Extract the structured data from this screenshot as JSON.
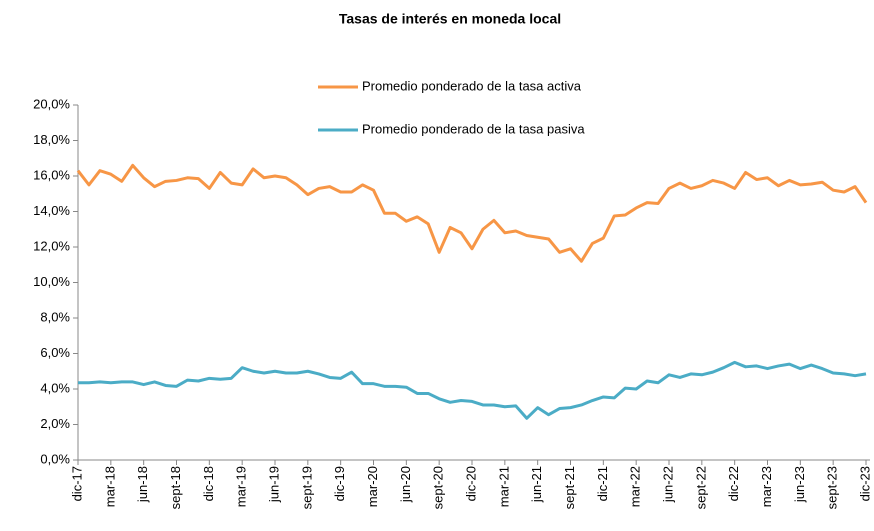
{
  "chart_data": {
    "type": "line",
    "title": "Tasas de interés en moneda local",
    "categories": [
      "dic-17",
      null,
      null,
      "mar-18",
      null,
      null,
      "jun-18",
      null,
      null,
      "sept-18",
      null,
      null,
      "dic-18",
      null,
      null,
      "mar-19",
      null,
      null,
      "jun-19",
      null,
      null,
      "sept-19",
      null,
      null,
      "dic-19",
      null,
      null,
      "mar-20",
      null,
      null,
      "jun-20",
      null,
      null,
      "sept-20",
      null,
      null,
      "dic-20",
      null,
      null,
      "mar-21",
      null,
      null,
      "jun-21",
      null,
      null,
      "sept-21",
      null,
      null,
      "dic-21",
      null,
      null,
      "mar-22",
      null,
      null,
      "jun-22",
      null,
      null,
      "sept-22",
      null,
      null,
      "dic-22",
      null,
      null,
      "mar-23",
      null,
      null,
      "jun-23",
      null,
      null,
      "sept-23",
      null,
      null,
      "dic-23"
    ],
    "series": [
      {
        "name": "Promedio ponderado de la tasa activa",
        "color": "#f79646",
        "values": [
          16.3,
          15.5,
          16.3,
          16.1,
          15.7,
          16.6,
          15.9,
          15.4,
          15.7,
          15.75,
          15.9,
          15.85,
          15.3,
          16.2,
          15.6,
          15.5,
          16.4,
          15.9,
          16.0,
          15.9,
          15.5,
          14.95,
          15.3,
          15.4,
          15.1,
          15.1,
          15.5,
          15.2,
          13.9,
          13.9,
          13.45,
          13.7,
          13.3,
          11.7,
          13.1,
          12.8,
          11.9,
          13.0,
          13.5,
          12.8,
          12.9,
          12.65,
          12.55,
          12.45,
          11.7,
          11.9,
          11.2,
          12.2,
          12.5,
          13.75,
          13.8,
          14.2,
          14.5,
          14.45,
          15.3,
          15.6,
          15.3,
          15.45,
          15.75,
          15.6,
          15.3,
          16.2,
          15.8,
          15.9,
          15.45,
          15.75,
          15.5,
          15.55,
          15.65,
          15.2,
          15.1,
          15.4,
          14.5
        ]
      },
      {
        "name": "Promedio ponderado de la tasa pasiva",
        "color": "#4bacc6",
        "values": [
          4.35,
          4.35,
          4.4,
          4.35,
          4.4,
          4.4,
          4.25,
          4.4,
          4.2,
          4.15,
          4.5,
          4.45,
          4.6,
          4.55,
          4.6,
          5.2,
          5.0,
          4.9,
          5.0,
          4.9,
          4.9,
          5.0,
          4.85,
          4.65,
          4.6,
          4.95,
          4.3,
          4.3,
          4.15,
          4.15,
          4.1,
          3.75,
          3.75,
          3.45,
          3.25,
          3.35,
          3.3,
          3.1,
          3.1,
          3.0,
          3.05,
          2.35,
          2.95,
          2.55,
          2.9,
          2.95,
          3.1,
          3.35,
          3.55,
          3.5,
          4.05,
          4.0,
          4.45,
          4.35,
          4.8,
          4.65,
          4.85,
          4.8,
          4.95,
          5.2,
          5.5,
          5.25,
          5.3,
          5.15,
          5.3,
          5.4,
          5.15,
          5.35,
          5.15,
          4.9,
          4.85,
          4.75,
          4.85
        ]
      }
    ],
    "ylim": [
      0,
      20
    ],
    "yticks": [
      {
        "value": 0,
        "label": "0,0%"
      },
      {
        "value": 2,
        "label": "2,0%"
      },
      {
        "value": 4,
        "label": "4,0%"
      },
      {
        "value": 6,
        "label": "6,0%"
      },
      {
        "value": 8,
        "label": "8,0%"
      },
      {
        "value": 10,
        "label": "10,0%"
      },
      {
        "value": 12,
        "label": "12,0%"
      },
      {
        "value": 14,
        "label": "14,0%"
      },
      {
        "value": 16,
        "label": "16,0%"
      },
      {
        "value": 18,
        "label": "18,0%"
      },
      {
        "value": 20,
        "label": "20,0%"
      }
    ],
    "grid": false
  }
}
